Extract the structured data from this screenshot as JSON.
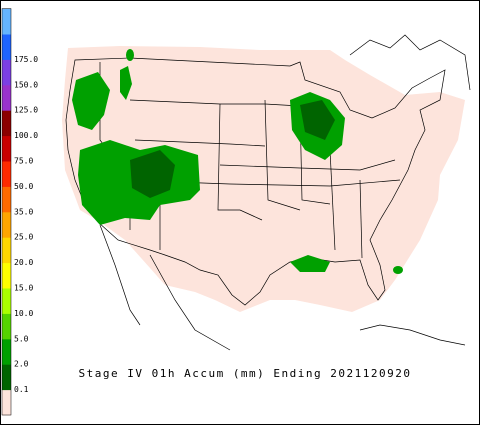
{
  "title": "Stage IV 01h Accum (mm) Ending 2021120920",
  "legend": {
    "colors": [
      "#fde4dc",
      "#006400",
      "#00a000",
      "#55d400",
      "#aaff00",
      "#ffff00",
      "#ffd700",
      "#ffa500",
      "#ff6a00",
      "#ff2a00",
      "#c80000",
      "#8b0000",
      "#9932cc",
      "#7b3fe4",
      "#1e64ff",
      "#64b4ff"
    ],
    "labels": [
      "0.1",
      "2.0",
      "5.0",
      "10.0",
      "15.0",
      "20.0",
      "25.0",
      "35.0",
      "50.0",
      "75.0",
      "100.0",
      "125.0",
      "150.0",
      "175.0"
    ]
  }
}
